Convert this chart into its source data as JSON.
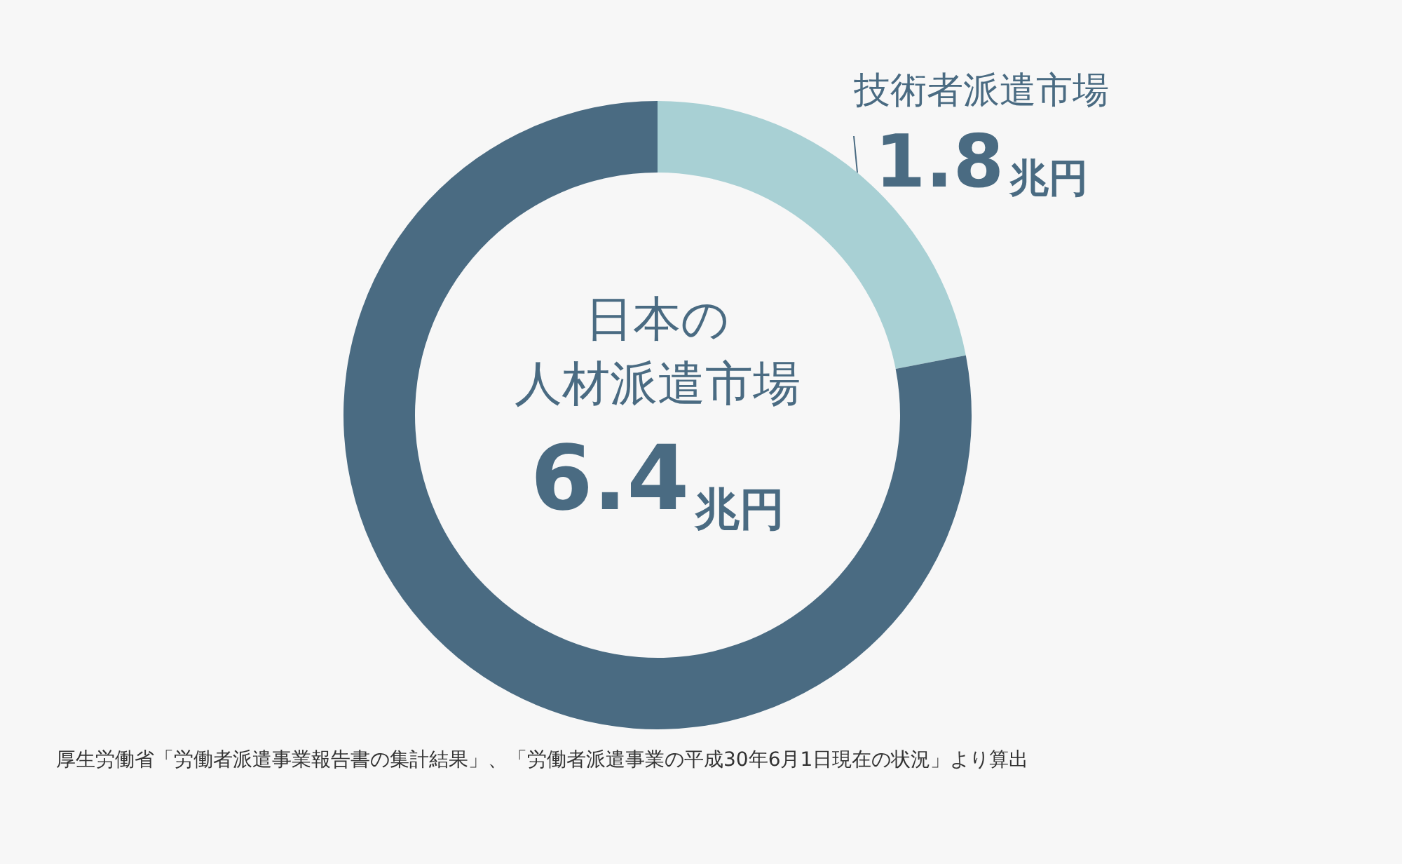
{
  "chart_data": {
    "type": "donut",
    "categories": [
      "技術者派遣市場",
      "日本の人材派遣市場"
    ],
    "values": [
      1.8,
      6.4
    ],
    "value_labels": [
      "1.8兆円",
      "6.4兆円"
    ],
    "colors": [
      "#a8d0d4",
      "#4a6b82"
    ],
    "legend": false,
    "annotations": [
      "厚生労働省「労働者派遣事業報告書の集計結果」、「労働者派遣事業の平成30年6月1日現在の状況」より算出"
    ]
  }
}
